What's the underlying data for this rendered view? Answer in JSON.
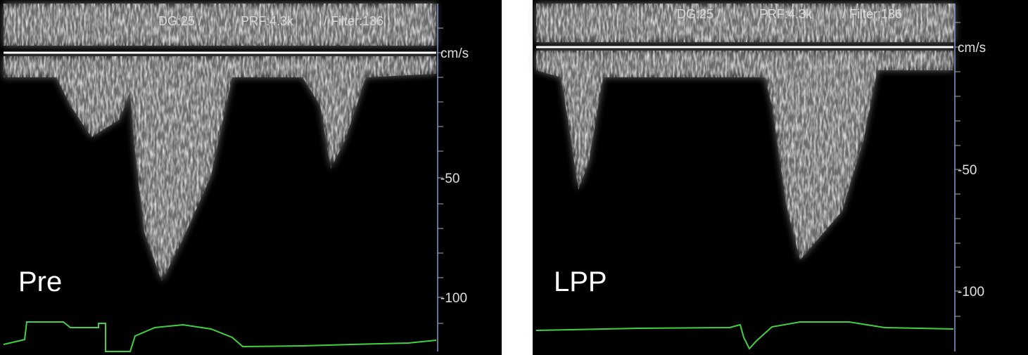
{
  "panels": [
    {
      "settings": [
        "DG:25 /",
        "PRF:4.3k",
        "/ Filter:136"
      ],
      "unit": "cm/s",
      "scale": [
        "-50",
        "-100"
      ],
      "label": "Pre"
    },
    {
      "settings": [
        "DG:25 /",
        "PRF:4.3k",
        "/ Filter:136"
      ],
      "unit": "cm/s",
      "scale": [
        "-50",
        "-100"
      ],
      "label": "LPP"
    }
  ]
}
